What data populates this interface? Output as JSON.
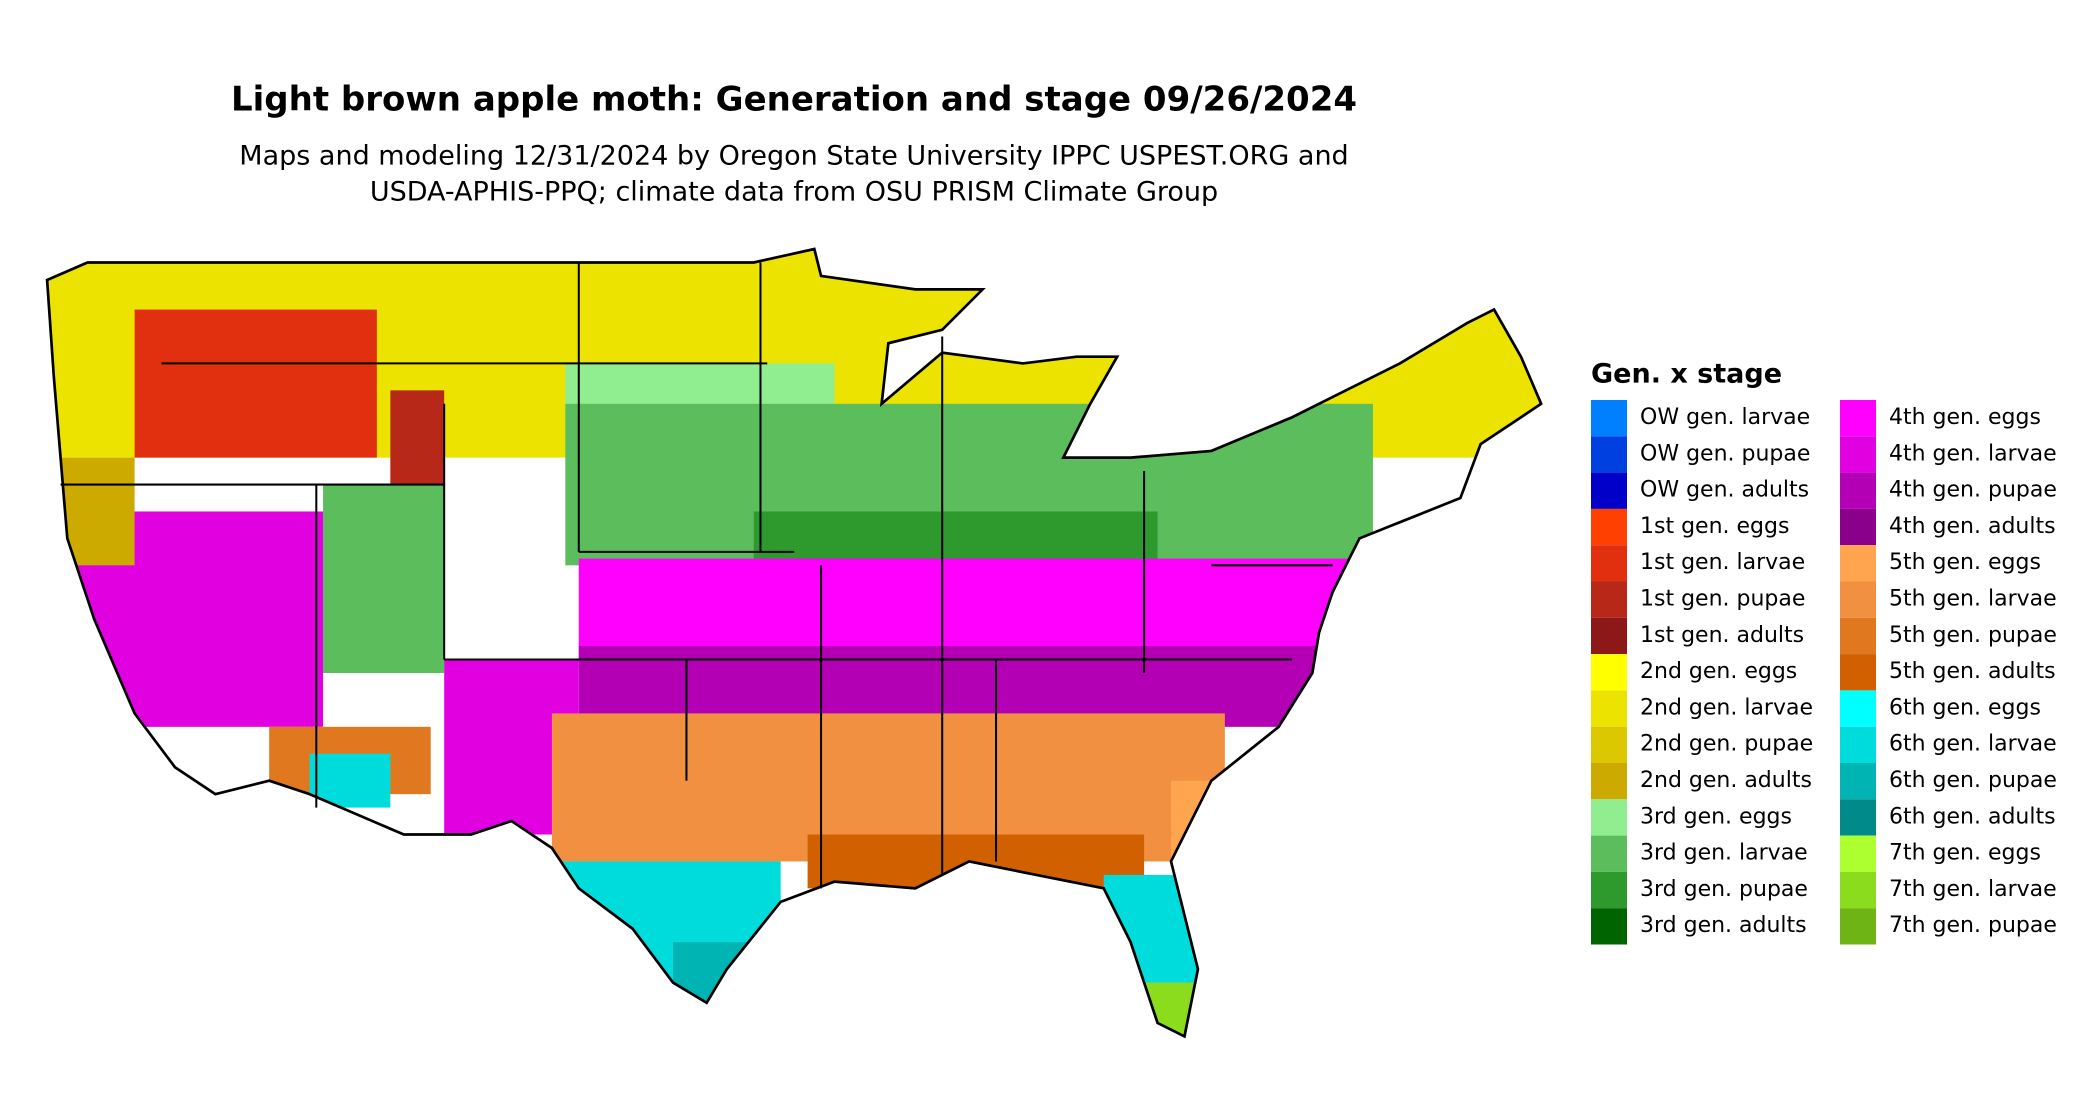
{
  "title": "Light brown apple moth: Generation and stage 09/26/2024",
  "subtitle": [
    "Maps and modeling 12/31/2024 by Oregon State University IPPC USPEST.ORG and",
    "USDA-APHIS-PPQ; climate data from OSU PRISM Climate Group"
  ],
  "legend": {
    "title": "Gen. x stage",
    "items": [
      {
        "label": "OW gen. larvae",
        "color": "#0080ff"
      },
      {
        "label": "OW gen. pupae",
        "color": "#0040e0"
      },
      {
        "label": "OW gen. adults",
        "color": "#0000c8"
      },
      {
        "label": "1st gen. eggs",
        "color": "#ff4000"
      },
      {
        "label": "1st gen. larvae",
        "color": "#e03010"
      },
      {
        "label": "1st gen. pupae",
        "color": "#b82818"
      },
      {
        "label": "1st gen. adults",
        "color": "#8c1818"
      },
      {
        "label": "2nd gen. eggs",
        "color": "#ffff00"
      },
      {
        "label": "2nd gen. larvae",
        "color": "#ece400"
      },
      {
        "label": "2nd gen. pupae",
        "color": "#dcc800"
      },
      {
        "label": "2nd gen. adults",
        "color": "#ccaa00"
      },
      {
        "label": "3rd gen. eggs",
        "color": "#90ee90"
      },
      {
        "label": "3rd gen. larvae",
        "color": "#5cbd5c"
      },
      {
        "label": "3rd gen. pupae",
        "color": "#2e9a2e"
      },
      {
        "label": "3rd gen. adults",
        "color": "#006400"
      },
      {
        "label": "4th gen. eggs",
        "color": "#ff00ff"
      },
      {
        "label": "4th gen. larvae",
        "color": "#e000e0"
      },
      {
        "label": "4th gen. pupae",
        "color": "#b400b4"
      },
      {
        "label": "4th gen. adults",
        "color": "#8b008b"
      },
      {
        "label": "5th gen. eggs",
        "color": "#ffa550"
      },
      {
        "label": "5th gen. larvae",
        "color": "#f09040"
      },
      {
        "label": "5th gen. pupae",
        "color": "#e07820"
      },
      {
        "label": "5th gen. adults",
        "color": "#d06000"
      },
      {
        "label": "6th gen. eggs",
        "color": "#00ffff"
      },
      {
        "label": "6th gen. larvae",
        "color": "#00dcdc"
      },
      {
        "label": "6th gen. pupae",
        "color": "#00b4b4"
      },
      {
        "label": "6th gen. adults",
        "color": "#008b8b"
      },
      {
        "label": "7th gen. eggs",
        "color": "#adff2f"
      },
      {
        "label": "7th gen. larvae",
        "color": "#8cdc1e"
      },
      {
        "label": "7th gen. pupae",
        "color": "#6eb414"
      }
    ]
  }
}
